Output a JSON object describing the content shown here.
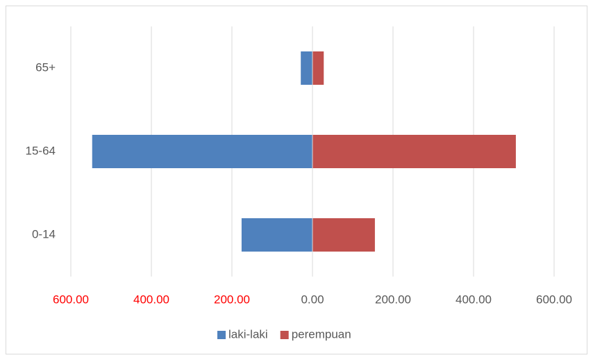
{
  "chart_data": {
    "type": "bar",
    "orientation": "horizontal",
    "categories": [
      "0-14",
      "15-64",
      "65+"
    ],
    "series": [
      {
        "name": "laki-laki",
        "color": "#4f81bd",
        "values": [
          -176,
          -547,
          -29
        ]
      },
      {
        "name": "perempuan",
        "color": "#c0504d",
        "values": [
          155,
          505,
          28
        ]
      }
    ],
    "xlim": [
      -600,
      600
    ],
    "xticks": [
      {
        "value": -600,
        "label": "600.00"
      },
      {
        "value": -400,
        "label": "400.00"
      },
      {
        "value": -200,
        "label": "200.00"
      },
      {
        "value": 0,
        "label": "0.00"
      },
      {
        "value": 200,
        "label": "200.00"
      },
      {
        "value": 400,
        "label": "400.00"
      },
      {
        "value": 600,
        "label": "600.00"
      }
    ],
    "xtick_label_colors": [
      "#ff0000",
      "#ff0000",
      "#ff0000",
      "#595959",
      "#595959",
      "#595959",
      "#595959"
    ],
    "grid": true,
    "legend": "bottom"
  }
}
